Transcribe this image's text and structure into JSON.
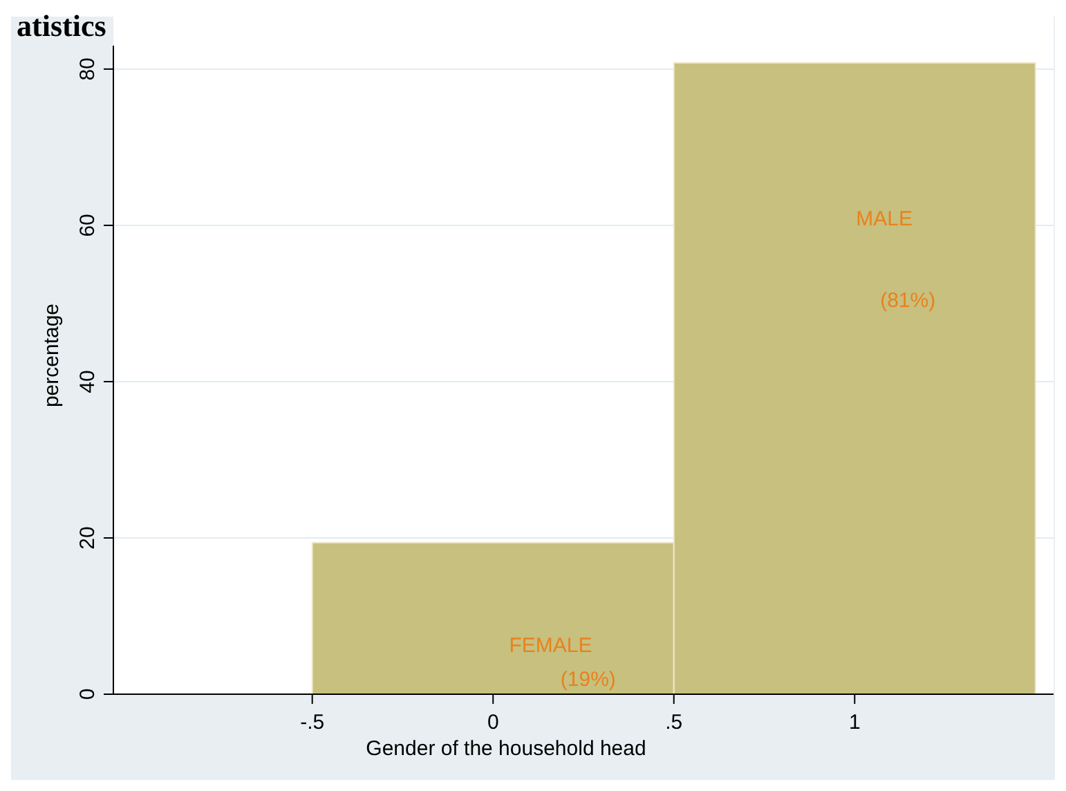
{
  "chart_data": {
    "type": "histogram",
    "title": "atistics",
    "xlabel": "Gender of the household head",
    "ylabel": "percentage",
    "bins": [
      -0.5,
      0.5,
      1.5
    ],
    "values": [
      19.4,
      80.8
    ],
    "color": "#c8c07e",
    "xlim": [
      -1.05,
      1.55
    ],
    "xticks": [
      {
        "value": -0.5,
        "label": "-.5"
      },
      0,
      {
        "value": 0.5,
        "label": ".5"
      },
      1
    ],
    "ylim": [
      0,
      83
    ],
    "yticks": [
      0,
      20,
      40,
      60,
      80
    ],
    "grid": "y",
    "annotations": [
      "MALE",
      "(81%)",
      "FEMALE",
      "(19%)"
    ]
  }
}
